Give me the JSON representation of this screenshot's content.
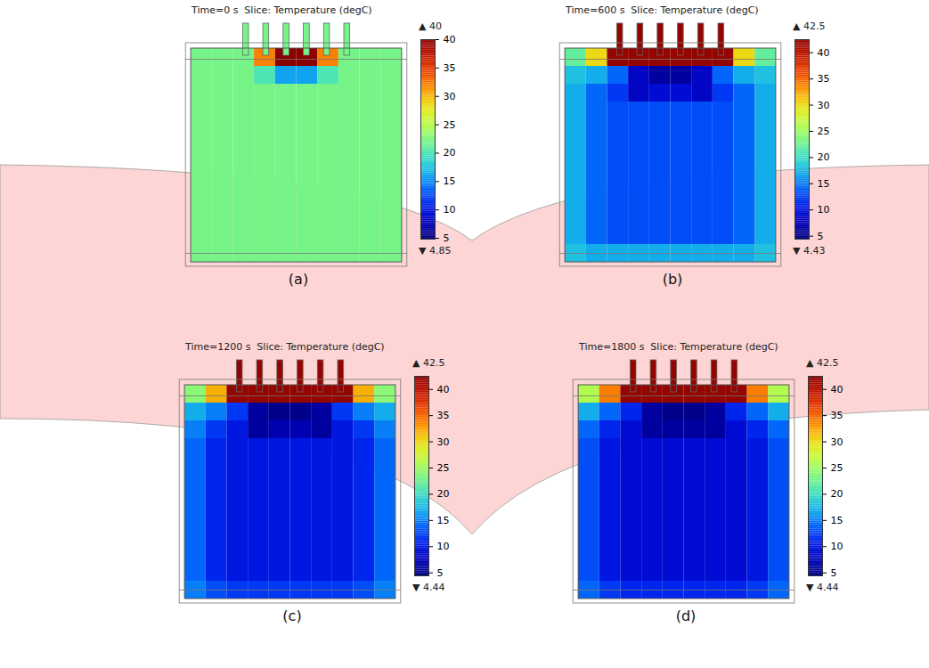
{
  "chart_data": [
    {
      "type": "heatmap",
      "panel": "(a)",
      "time_label": "Time=0 s",
      "title": "Slice: Temperature (degC)",
      "max": {
        "value": 40,
        "label": "▲ 40"
      },
      "min": {
        "value": 4.85,
        "label": "▼ 4.85"
      },
      "colorbar_ticks": [
        5,
        10,
        15,
        20,
        25,
        30,
        35,
        40
      ],
      "fin_temperature": 22,
      "cells": [
        [
          22,
          22,
          22,
          32,
          40,
          40,
          32,
          22,
          22,
          22
        ],
        [
          22,
          22,
          22,
          20,
          16,
          16,
          20,
          22,
          22,
          22
        ],
        [
          22,
          22,
          22,
          22,
          22,
          22,
          22,
          22,
          22,
          22
        ],
        [
          22,
          22,
          22,
          22,
          22,
          22,
          22,
          22,
          22,
          22
        ],
        [
          22,
          22,
          22,
          22,
          22,
          22,
          22,
          22,
          22,
          22
        ],
        [
          22,
          22,
          22,
          22,
          22,
          22,
          22,
          22,
          22,
          22
        ],
        [
          22,
          22,
          22,
          22,
          22,
          22,
          22,
          22,
          22,
          22
        ],
        [
          22,
          22,
          22,
          22,
          22,
          22,
          22,
          22,
          22,
          22
        ],
        [
          22,
          22,
          22,
          22,
          22,
          22,
          22,
          22,
          22,
          22
        ],
        [
          22,
          22,
          22,
          22,
          22,
          22,
          22,
          22,
          22,
          22
        ],
        [
          22,
          22,
          22,
          22,
          22,
          22,
          22,
          22,
          22,
          22
        ],
        [
          22,
          22,
          22,
          22,
          22,
          22,
          22,
          22,
          22,
          22
        ]
      ]
    },
    {
      "type": "heatmap",
      "panel": "(b)",
      "time_label": "Time=600 s",
      "title": "Slice: Temperature (degC)",
      "max": {
        "value": 42.5,
        "label": "▲ 42.5"
      },
      "min": {
        "value": 4.43,
        "label": "▼ 4.43"
      },
      "colorbar_ticks": [
        5,
        10,
        15,
        20,
        25,
        30,
        35,
        40
      ],
      "fin_temperature": 42,
      "cells": [
        [
          22,
          30,
          42,
          42,
          42,
          42,
          42,
          42,
          30,
          22
        ],
        [
          18,
          17,
          14,
          8,
          6,
          6,
          8,
          14,
          17,
          18
        ],
        [
          17,
          14,
          12,
          8,
          9,
          9,
          8,
          12,
          14,
          17
        ],
        [
          17,
          14,
          13,
          13,
          13,
          13,
          13,
          13,
          14,
          17
        ],
        [
          17,
          14,
          13,
          13,
          13,
          13,
          13,
          13,
          14,
          17
        ],
        [
          17,
          14,
          13,
          13,
          13,
          13,
          13,
          13,
          14,
          17
        ],
        [
          17,
          14,
          13,
          13,
          13,
          13,
          13,
          13,
          14,
          17
        ],
        [
          17,
          14,
          13,
          13,
          13,
          13,
          13,
          13,
          14,
          17
        ],
        [
          17,
          14,
          13,
          13,
          13,
          13,
          13,
          13,
          14,
          17
        ],
        [
          17,
          14,
          13,
          13,
          13,
          13,
          13,
          13,
          14,
          17
        ],
        [
          17,
          14,
          13,
          13,
          13,
          13,
          13,
          13,
          14,
          17
        ],
        [
          18,
          17,
          17,
          17,
          17,
          17,
          17,
          17,
          17,
          18
        ]
      ]
    },
    {
      "type": "heatmap",
      "panel": "(c)",
      "time_label": "Time=1200 s",
      "title": "Slice: Temperature (degC)",
      "max": {
        "value": 42.5,
        "label": "▲ 42.5"
      },
      "min": {
        "value": 4.44,
        "label": "▼ 4.44"
      },
      "colorbar_ticks": [
        5,
        10,
        15,
        20,
        25,
        30,
        35,
        40
      ],
      "fin_temperature": 42,
      "cells": [
        [
          24,
          32,
          42,
          42,
          42,
          42,
          42,
          42,
          32,
          24
        ],
        [
          17,
          15,
          12,
          6,
          5,
          5,
          6,
          12,
          15,
          17
        ],
        [
          15,
          12,
          10,
          6,
          7,
          7,
          6,
          10,
          12,
          15
        ],
        [
          14,
          11,
          10,
          10,
          10,
          10,
          10,
          10,
          11,
          14
        ],
        [
          14,
          11,
          10,
          10,
          10,
          10,
          10,
          10,
          11,
          14
        ],
        [
          14,
          11,
          10,
          10,
          10,
          10,
          10,
          10,
          11,
          14
        ],
        [
          14,
          11,
          10,
          10,
          10,
          10,
          10,
          10,
          11,
          14
        ],
        [
          14,
          11,
          10,
          10,
          10,
          10,
          10,
          10,
          11,
          14
        ],
        [
          14,
          11,
          10,
          10,
          10,
          10,
          10,
          10,
          11,
          14
        ],
        [
          14,
          11,
          10,
          10,
          10,
          10,
          10,
          10,
          11,
          14
        ],
        [
          14,
          11,
          10,
          10,
          10,
          10,
          10,
          10,
          11,
          14
        ],
        [
          15,
          13,
          12,
          12,
          12,
          12,
          12,
          12,
          13,
          15
        ]
      ]
    },
    {
      "type": "heatmap",
      "panel": "(d)",
      "time_label": "Time=1800 s",
      "title": "Slice: Temperature (degC)",
      "max": {
        "value": 42.5,
        "label": "▲ 42.5"
      },
      "min": {
        "value": 4.44,
        "label": "▼ 4.44"
      },
      "colorbar_ticks": [
        5,
        10,
        15,
        20,
        25,
        30,
        35,
        40
      ],
      "fin_temperature": 42,
      "cells": [
        [
          26,
          34,
          42,
          42,
          42,
          42,
          42,
          42,
          34,
          26
        ],
        [
          17,
          14,
          11,
          6,
          5,
          5,
          6,
          11,
          14,
          17
        ],
        [
          14,
          11,
          9,
          6,
          6,
          6,
          6,
          9,
          11,
          14
        ],
        [
          13,
          10,
          9,
          9,
          9,
          9,
          9,
          9,
          10,
          13
        ],
        [
          13,
          10,
          9,
          9,
          9,
          9,
          9,
          9,
          10,
          13
        ],
        [
          13,
          10,
          9,
          9,
          9,
          9,
          9,
          9,
          10,
          13
        ],
        [
          13,
          10,
          9,
          9,
          9,
          9,
          9,
          9,
          10,
          13
        ],
        [
          13,
          10,
          9,
          9,
          9,
          9,
          9,
          9,
          10,
          13
        ],
        [
          13,
          10,
          9,
          9,
          9,
          9,
          9,
          9,
          10,
          13
        ],
        [
          13,
          10,
          9,
          9,
          9,
          9,
          9,
          9,
          10,
          13
        ],
        [
          13,
          10,
          9,
          9,
          9,
          9,
          9,
          9,
          10,
          13
        ],
        [
          14,
          12,
          11,
          11,
          11,
          11,
          11,
          11,
          12,
          14
        ]
      ]
    }
  ]
}
